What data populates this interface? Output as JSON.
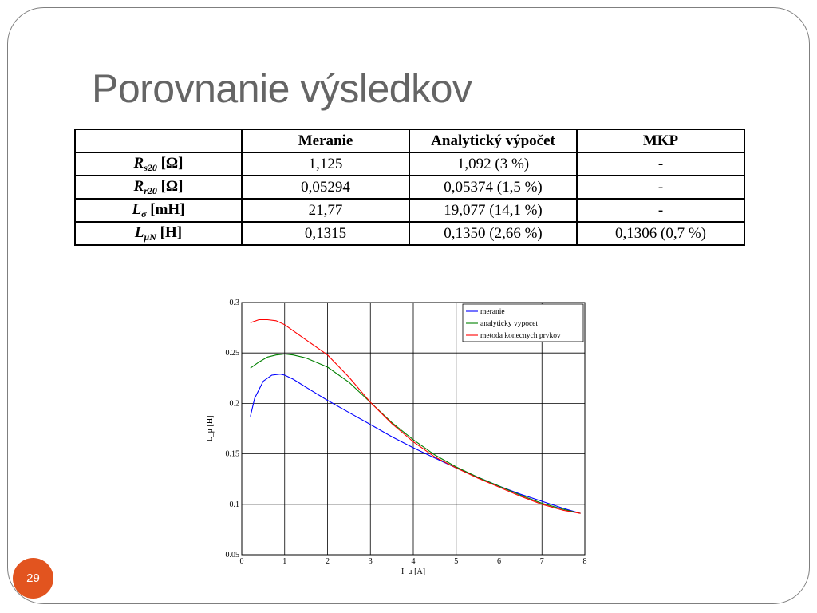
{
  "title": "Porovnanie výsledkov",
  "slide_number": "29",
  "table": {
    "headers": [
      "",
      "Meranie",
      "Analytický výpočet",
      "MKP"
    ],
    "rows": [
      {
        "symbol": "R",
        "sub": "s20",
        "unit": " [Ω]",
        "cells": [
          "1,125",
          "1,092 (3 %)",
          "-"
        ]
      },
      {
        "symbol": "R",
        "sub": "r20",
        "unit": " [Ω]",
        "cells": [
          "0,05294",
          "0,05374 (1,5 %)",
          "-"
        ]
      },
      {
        "symbol": "L",
        "sub": "σ",
        "unit": " [mH]",
        "cells": [
          "21,77",
          "19,077 (14,1 %)",
          "-"
        ]
      },
      {
        "symbol": "L",
        "sub": "μN",
        "unit": " [H]",
        "cells": [
          "0,1315",
          "0,1350 (2,66 %)",
          "0,1306 (0,7 %)"
        ]
      }
    ]
  },
  "chart_data": {
    "type": "line",
    "xlabel": "I_μ [A]",
    "ylabel": "L_μ [H]",
    "xlim": [
      0,
      8
    ],
    "ylim": [
      0.05,
      0.3
    ],
    "xticks": [
      "0",
      "1",
      "2",
      "3",
      "4",
      "5",
      "6",
      "7",
      "8"
    ],
    "yticks": [
      "0.05",
      "0.1",
      "0.15",
      "0.2",
      "0.25",
      "0.3"
    ],
    "grid": true,
    "legend_position": "top-right",
    "series": [
      {
        "name": "meranie",
        "color": "#0000ff",
        "x": [
          0.2,
          0.3,
          0.5,
          0.7,
          0.9,
          1.0,
          1.2,
          1.5,
          2.0,
          2.5,
          3.0,
          3.5,
          4.0,
          4.5,
          5.0,
          5.5,
          6.0,
          6.5,
          7.0,
          7.5,
          7.9
        ],
        "y": [
          0.187,
          0.205,
          0.222,
          0.228,
          0.229,
          0.228,
          0.224,
          0.216,
          0.203,
          0.191,
          0.179,
          0.167,
          0.156,
          0.146,
          0.136,
          0.127,
          0.118,
          0.11,
          0.103,
          0.096,
          0.091
        ]
      },
      {
        "name": "analyticky vypocet",
        "color": "#008000",
        "x": [
          0.2,
          0.4,
          0.6,
          0.8,
          1.0,
          1.2,
          1.5,
          2.0,
          2.5,
          3.0,
          3.5,
          4.0,
          4.5,
          5.0,
          5.5,
          6.0,
          6.5,
          7.0,
          7.5,
          7.9
        ],
        "y": [
          0.235,
          0.241,
          0.246,
          0.248,
          0.249,
          0.248,
          0.245,
          0.236,
          0.221,
          0.201,
          0.181,
          0.164,
          0.149,
          0.137,
          0.127,
          0.118,
          0.109,
          0.101,
          0.095,
          0.091
        ]
      },
      {
        "name": "metoda konecnych prvkov",
        "color": "#ff0000",
        "x": [
          0.2,
          0.4,
          0.6,
          0.8,
          1.0,
          1.2,
          1.5,
          2.0,
          2.5,
          3.0,
          3.5,
          4.0,
          4.5,
          5.0,
          5.5,
          6.0,
          6.5,
          7.0,
          7.5,
          7.9
        ],
        "y": [
          0.28,
          0.283,
          0.283,
          0.282,
          0.278,
          0.272,
          0.263,
          0.248,
          0.226,
          0.201,
          0.18,
          0.162,
          0.147,
          0.136,
          0.126,
          0.117,
          0.108,
          0.1,
          0.094,
          0.091
        ]
      }
    ]
  }
}
